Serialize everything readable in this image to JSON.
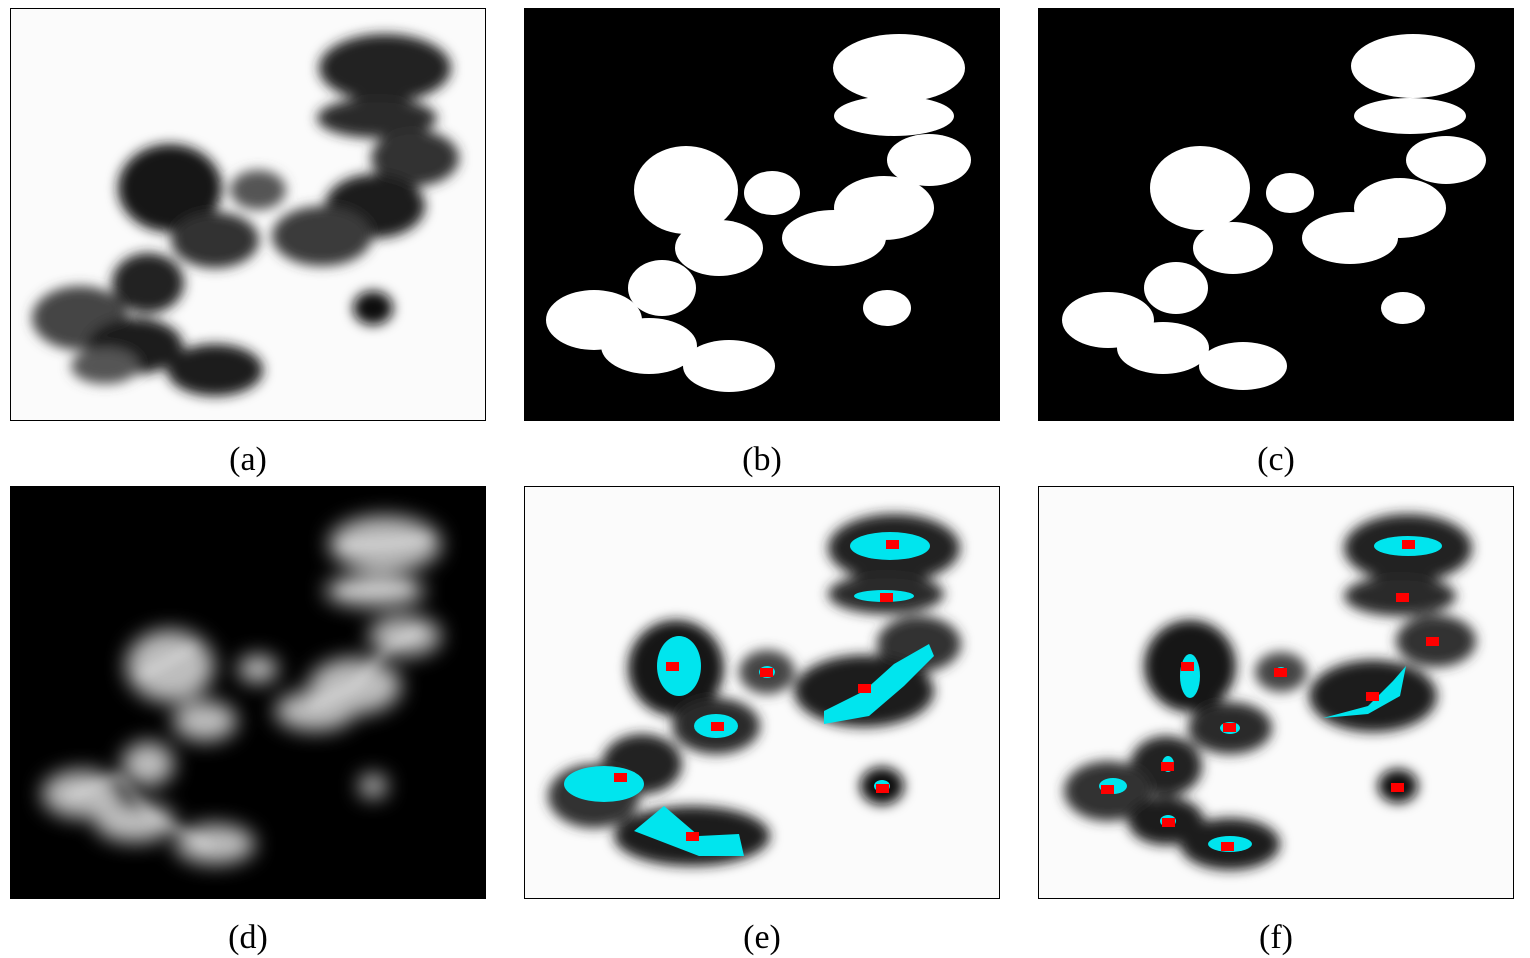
{
  "figure": {
    "panels": [
      {
        "id": "a",
        "caption": "(a)",
        "description_name": "original-grayscale-cells"
      },
      {
        "id": "b",
        "caption": "(b)",
        "description_name": "binary-mask"
      },
      {
        "id": "c",
        "caption": "(c)",
        "description_name": "refined-binary-mask"
      },
      {
        "id": "d",
        "caption": "(d)",
        "description_name": "distance-transform"
      },
      {
        "id": "e",
        "caption": "(e)",
        "description_name": "seed-regions-overlay"
      },
      {
        "id": "f",
        "caption": "(f)",
        "description_name": "refined-seed-overlay"
      }
    ]
  },
  "colors": {
    "seed_region": "#00e5ee",
    "seed_marker": "#ff0000",
    "cell": "#1a1a1a",
    "background_light": "#fbfbfb",
    "background_dark": "#000000"
  }
}
